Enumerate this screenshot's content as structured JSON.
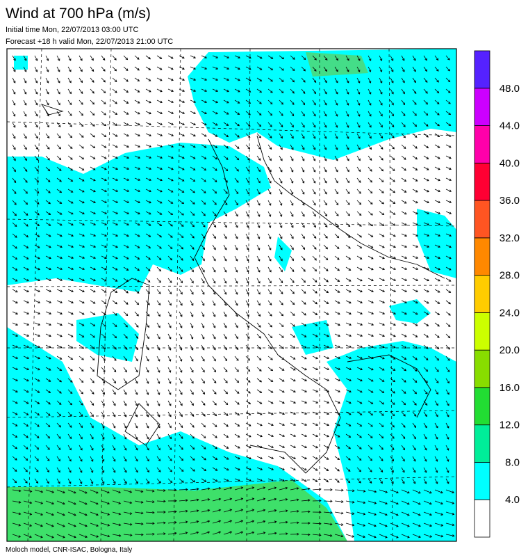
{
  "header": {
    "title": "Wind at 700 hPa (m/s)",
    "initial_time": "Initial time  Mon, 22/07/2013 03:00 UTC",
    "forecast": "Forecast +18 h valid  Mon, 22/07/2013 21:00 UTC"
  },
  "colorbar": {
    "colors": [
      "#ffffff",
      "#00ffff",
      "#00ee99",
      "#22dd33",
      "#88dd00",
      "#ccff00",
      "#ffcc00",
      "#ff8800",
      "#ff5522",
      "#ff0033",
      "#ff00aa",
      "#cc00ff",
      "#5522ff"
    ],
    "ticks": [
      {
        "value": 4,
        "label": "4.0"
      },
      {
        "value": 8,
        "label": "8.0"
      },
      {
        "value": 12,
        "label": "12.0"
      },
      {
        "value": 16,
        "label": "16.0"
      },
      {
        "value": 20,
        "label": "20.0"
      },
      {
        "value": 24,
        "label": "24.0"
      },
      {
        "value": 28,
        "label": "28.0"
      },
      {
        "value": 32,
        "label": "32.0"
      },
      {
        "value": 36,
        "label": "36.0"
      },
      {
        "value": 40,
        "label": "40.0"
      },
      {
        "value": 44,
        "label": "44.0"
      },
      {
        "value": 48,
        "label": "48.0"
      }
    ]
  },
  "footer": "Moloch model, CNR-ISAC, Bologna, Italy"
}
